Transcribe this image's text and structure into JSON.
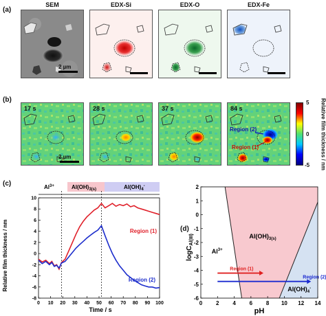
{
  "panel_a": {
    "label": "(a)",
    "tiles": [
      {
        "title": "SEM"
      },
      {
        "title": "EDX-Si"
      },
      {
        "title": "EDX-O"
      },
      {
        "title": "EDX-Fe"
      }
    ],
    "scale_bar": "2 µm"
  },
  "panel_b": {
    "label": "(b)",
    "tiles": [
      {
        "time": "17 s"
      },
      {
        "time": "28 s"
      },
      {
        "time": "37 s"
      },
      {
        "time": "84 s"
      }
    ],
    "scale_bar": "2 µm",
    "region2_label": "Region (2)",
    "region1_label": "Region (1)",
    "colorbar": {
      "title": "Relative film thickness / nm",
      "ticks": [
        "5",
        "0",
        "-5"
      ],
      "colors": [
        "#800000",
        "#ff0000",
        "#ffff00",
        "#4fe070",
        "#00c8ff",
        "#0000ff",
        "#00007f"
      ]
    }
  },
  "panel_c": {
    "label": "(c)",
    "phase_labels": [
      "Al3+",
      "Al(OH)3(s)",
      "Al(OH)4-"
    ],
    "phase_colors": [
      "#ffffff",
      "#f7c6cc",
      "#cfcdf3"
    ],
    "chart_data": {
      "type": "line",
      "xlabel": "Time / s",
      "ylabel": "Relative film thickness / nm",
      "xlim": [
        0,
        100
      ],
      "ylim": [
        -8,
        10
      ],
      "xticks": [
        0,
        10,
        20,
        30,
        40,
        50,
        60,
        70,
        80,
        90,
        100
      ],
      "yticks": [
        -8,
        -6,
        -4,
        -2,
        0,
        2,
        4,
        6,
        8,
        10
      ],
      "vlines": [
        19,
        52
      ],
      "series": [
        {
          "name": "Region (1)",
          "color": "#e0202a",
          "x": [
            0,
            3,
            6,
            9,
            11,
            13,
            15,
            17,
            19,
            22,
            25,
            28,
            31,
            34,
            37,
            40,
            43,
            46,
            49,
            52,
            55,
            58,
            61,
            64,
            67,
            70,
            73,
            76,
            79,
            82,
            85,
            88,
            91,
            94,
            97,
            100
          ],
          "y": [
            -1.0,
            -1.5,
            -1.2,
            -1.8,
            -1.4,
            -2.2,
            -2.0,
            -2.8,
            -1.6,
            -1.0,
            0.5,
            2.0,
            3.5,
            4.8,
            5.8,
            6.6,
            7.2,
            7.8,
            8.2,
            9.0,
            8.2,
            8.6,
            9.0,
            8.5,
            8.8,
            8.6,
            8.9,
            8.4,
            8.6,
            8.2,
            8.0,
            7.8,
            7.6,
            7.4,
            7.2,
            7.0
          ]
        },
        {
          "name": "Region (2)",
          "color": "#1c2dcc",
          "x": [
            0,
            3,
            6,
            9,
            11,
            13,
            15,
            17,
            19,
            22,
            25,
            28,
            31,
            34,
            37,
            40,
            43,
            46,
            49,
            52,
            55,
            58,
            61,
            64,
            67,
            70,
            73,
            76,
            79,
            82,
            85,
            88,
            91,
            94,
            97,
            100
          ],
          "y": [
            -1.2,
            -1.8,
            -1.4,
            -2.0,
            -1.6,
            -2.3,
            -2.1,
            -2.6,
            -1.7,
            -1.4,
            -0.6,
            0.2,
            1.0,
            1.6,
            2.2,
            2.8,
            3.3,
            3.8,
            4.2,
            5.0,
            3.2,
            1.5,
            0.0,
            -1.2,
            -2.2,
            -3.0,
            -3.8,
            -4.3,
            -4.8,
            -5.2,
            -5.6,
            -5.8,
            -6.0,
            -6.0,
            -6.2,
            -6.1
          ]
        }
      ]
    }
  },
  "panel_d": {
    "label": "(d)",
    "regions": {
      "aq": "Al3+",
      "solid": "Al(OH)3(s)",
      "hydroxo": "Al(OH)4-"
    },
    "colors": {
      "solid": "#f8c9cf",
      "hydroxo": "#d5e2f2",
      "aq": "#ffffff"
    },
    "arrows": [
      {
        "label": "Region (1)",
        "color": "#e02020",
        "y": -4.2,
        "x_from": 2,
        "x_to": 7.5
      },
      {
        "label": "Region (2)",
        "color": "#1b2ad0",
        "y": -4.8,
        "x_from": 2,
        "x_to": 13.2
      }
    ],
    "chart_data": {
      "type": "area",
      "xlabel": "pH",
      "ylabel": "logC_Al(III)",
      "xlim": [
        0,
        14
      ],
      "ylim": [
        -6,
        2
      ],
      "xticks": [
        0,
        2,
        4,
        6,
        8,
        10,
        12,
        14
      ],
      "yticks": [
        -6,
        -5,
        -4,
        -3,
        -2,
        -1,
        0,
        1,
        2
      ],
      "boundaries": {
        "al3_to_solid": {
          "x": [
            2.9,
            4.9
          ],
          "y": [
            2,
            -6
          ]
        },
        "solid_to_hydroxo": {
          "x": [
            9.4,
            14
          ],
          "y": [
            -6,
            0.9
          ]
        }
      }
    }
  }
}
